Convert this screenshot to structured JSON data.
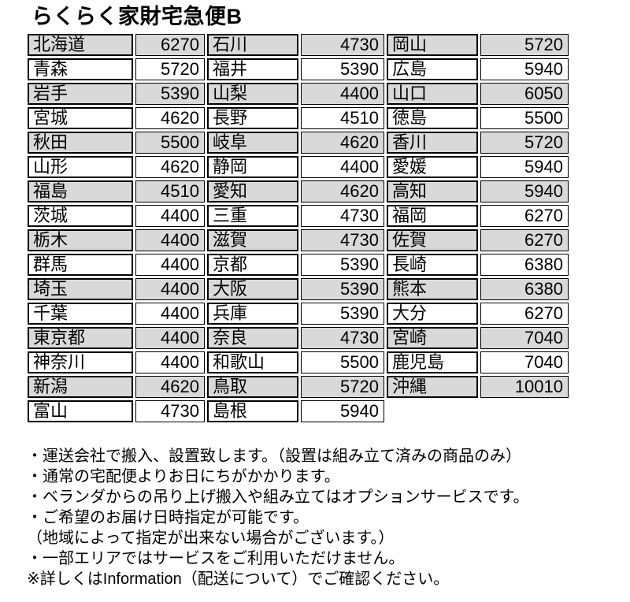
{
  "title": "らくらく家財宅急便B",
  "colors": {
    "row_shade": "#d9d9d9",
    "row_plain": "#ffffff",
    "border": "#000000",
    "text": "#000000",
    "background": "#ffffff"
  },
  "table": {
    "columns": [
      {
        "entries": [
          {
            "prefecture": "北海道",
            "price": 6270
          },
          {
            "prefecture": "青森",
            "price": 5720
          },
          {
            "prefecture": "岩手",
            "price": 5390
          },
          {
            "prefecture": "宮城",
            "price": 4620
          },
          {
            "prefecture": "秋田",
            "price": 5500
          },
          {
            "prefecture": "山形",
            "price": 4620
          },
          {
            "prefecture": "福島",
            "price": 4510
          },
          {
            "prefecture": "茨城",
            "price": 4400
          },
          {
            "prefecture": "栃木",
            "price": 4400
          },
          {
            "prefecture": "群馬",
            "price": 4400
          },
          {
            "prefecture": "埼玉",
            "price": 4400
          },
          {
            "prefecture": "千葉",
            "price": 4400
          },
          {
            "prefecture": "東京都",
            "price": 4400
          },
          {
            "prefecture": "神奈川",
            "price": 4400
          },
          {
            "prefecture": "新潟",
            "price": 4620
          },
          {
            "prefecture": "富山",
            "price": 4730
          }
        ]
      },
      {
        "entries": [
          {
            "prefecture": "石川",
            "price": 4730
          },
          {
            "prefecture": "福井",
            "price": 5390
          },
          {
            "prefecture": "山梨",
            "price": 4400
          },
          {
            "prefecture": "長野",
            "price": 4510
          },
          {
            "prefecture": "岐阜",
            "price": 4620
          },
          {
            "prefecture": "静岡",
            "price": 4400
          },
          {
            "prefecture": "愛知",
            "price": 4620
          },
          {
            "prefecture": "三重",
            "price": 4730
          },
          {
            "prefecture": "滋賀",
            "price": 4730
          },
          {
            "prefecture": "京都",
            "price": 5390
          },
          {
            "prefecture": "大阪",
            "price": 5390
          },
          {
            "prefecture": "兵庫",
            "price": 5390
          },
          {
            "prefecture": "奈良",
            "price": 4730
          },
          {
            "prefecture": "和歌山",
            "price": 5500
          },
          {
            "prefecture": "鳥取",
            "price": 5720
          },
          {
            "prefecture": "島根",
            "price": 5940
          }
        ]
      },
      {
        "entries": [
          {
            "prefecture": "岡山",
            "price": 5720
          },
          {
            "prefecture": "広島",
            "price": 5940
          },
          {
            "prefecture": "山口",
            "price": 6050
          },
          {
            "prefecture": "徳島",
            "price": 5500
          },
          {
            "prefecture": "香川",
            "price": 5720
          },
          {
            "prefecture": "愛媛",
            "price": 5940
          },
          {
            "prefecture": "高知",
            "price": 5940
          },
          {
            "prefecture": "福岡",
            "price": 6270
          },
          {
            "prefecture": "佐賀",
            "price": 6270
          },
          {
            "prefecture": "長崎",
            "price": 6380
          },
          {
            "prefecture": "熊本",
            "price": 6380
          },
          {
            "prefecture": "大分",
            "price": 6270
          },
          {
            "prefecture": "宮崎",
            "price": 7040
          },
          {
            "prefecture": "鹿児島",
            "price": 7040
          },
          {
            "prefecture": "沖縄",
            "price": 10010
          }
        ]
      }
    ]
  },
  "notes": [
    "・運送会社で搬入、設置致します。（設置は組み立て済みの商品のみ）",
    "・通常の宅配便よりお日にちがかかります。",
    "・ベランダからの吊り上げ搬入や組み立てはオプションサービスです。",
    "・ご希望のお届け日時指定が可能です。",
    "（地域によって指定が出来ない場合がございます。）",
    "・一部エリアではサービスをご利用いただけません。",
    "※詳しくはInformation（配送について）でご確認ください。"
  ]
}
